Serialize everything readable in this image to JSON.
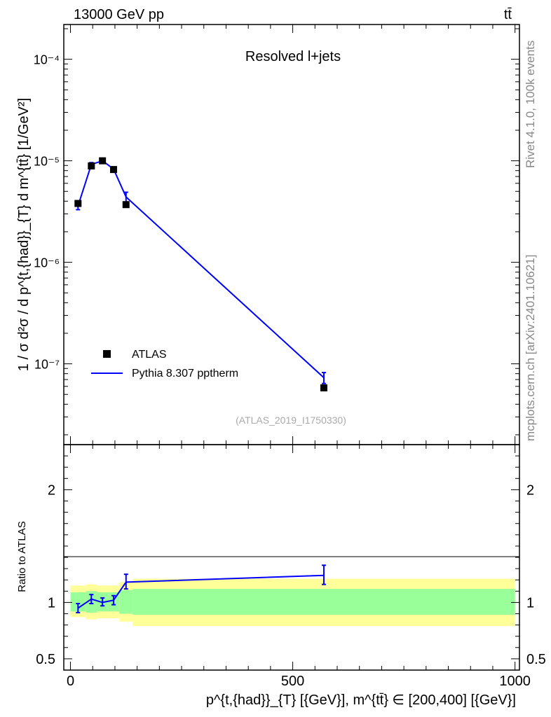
{
  "header": {
    "energy_label": "13000 GeV pp",
    "process_label": "tt̄"
  },
  "side_labels": {
    "rivet": "Rivet 4.1.0,  100k events",
    "mcplots": "mcplots.cern.ch [arXiv:2401.10621]"
  },
  "chart_data": [
    {
      "type": "scatter",
      "title": "Resolved l+jets",
      "ylabel": "1 / σ d²σ / d p^{t,{had}}_{T} d m^{tt̄} [1/GeV²]",
      "yscale": "log",
      "xlim": [
        -15,
        1010
      ],
      "ylim": [
        1.6e-08,
        0.00022
      ],
      "y_ticks": [
        {
          "label": "10⁻⁷",
          "value": 1e-07
        },
        {
          "label": "10⁻⁶",
          "value": 1e-06
        },
        {
          "label": "10⁻⁵",
          "value": 1e-05
        },
        {
          "label": "10⁻⁴",
          "value": 0.0001
        }
      ],
      "legend": {
        "position": "middle-left",
        "entries": [
          "ATLAS",
          "Pythia 8.307 pptherm"
        ]
      },
      "watermark": "(ATLAS_2019_I1750330)",
      "series": [
        {
          "name": "ATLAS",
          "style": "markers",
          "color": "#000000",
          "x": [
            17,
            47,
            72,
            97,
            125,
            570
          ],
          "y": [
            3.8e-06,
            8.9e-06,
            1e-05,
            8.2e-06,
            3.7e-06,
            5.8e-08
          ]
        },
        {
          "name": "Pythia 8.307 pptherm",
          "style": "line",
          "color": "#0000ff",
          "x": [
            17,
            47,
            72,
            97,
            125,
            570
          ],
          "y": [
            3.6e-06,
            9.2e-06,
            1e-05,
            8.3e-06,
            4.4e-06,
            7.3e-08
          ],
          "err_lo": [
            3.3e-06,
            8.8e-06,
            9.6e-06,
            7.9e-06,
            3.9e-06,
            6.4e-08
          ],
          "err_hi": [
            3.9e-06,
            9.6e-06,
            1.05e-05,
            8.7e-06,
            4.9e-06,
            8.2e-08
          ]
        }
      ]
    },
    {
      "type": "line",
      "ylabel": "Ratio to ATLAS",
      "xlabel": "p^{t,{had}}_{T} [{GeV}], m^{tt̄} ∈ [200,400] [{GeV}]",
      "xlim": [
        -15,
        1010
      ],
      "ylim": [
        0.4,
        2.4
      ],
      "x_ticks": [
        {
          "label": "0",
          "value": 0
        },
        {
          "label": "500",
          "value": 500
        },
        {
          "label": "1000",
          "value": 1000
        }
      ],
      "y_ticks": [
        {
          "label": "0.5",
          "value": 0.5
        },
        {
          "label": "1",
          "value": 1
        },
        {
          "label": "2",
          "value": 2
        }
      ],
      "bands": {
        "bin_edges": [
          0,
          35,
          60,
          85,
          110,
          140,
          1000
        ],
        "green_lo": [
          0.92,
          0.91,
          0.92,
          0.92,
          0.9,
          0.89
        ],
        "green_hi": [
          1.09,
          1.1,
          1.09,
          1.09,
          1.11,
          1.12
        ],
        "yellow_lo": [
          0.87,
          0.85,
          0.86,
          0.86,
          0.83,
          0.79
        ],
        "yellow_hi": [
          1.15,
          1.16,
          1.15,
          1.15,
          1.18,
          1.21
        ],
        "green_color": "#99ff99",
        "yellow_color": "#ffff99"
      },
      "series": [
        {
          "name": "Pythia 8.307 pptherm / ATLAS",
          "color": "#0000ff",
          "x": [
            17,
            47,
            72,
            97,
            125,
            570
          ],
          "y": [
            0.95,
            1.03,
            1.0,
            1.02,
            1.18,
            1.24
          ],
          "err_lo": [
            0.91,
            0.99,
            0.97,
            0.98,
            1.12,
            1.16
          ],
          "err_hi": [
            0.99,
            1.07,
            1.04,
            1.06,
            1.25,
            1.33
          ]
        }
      ]
    }
  ]
}
